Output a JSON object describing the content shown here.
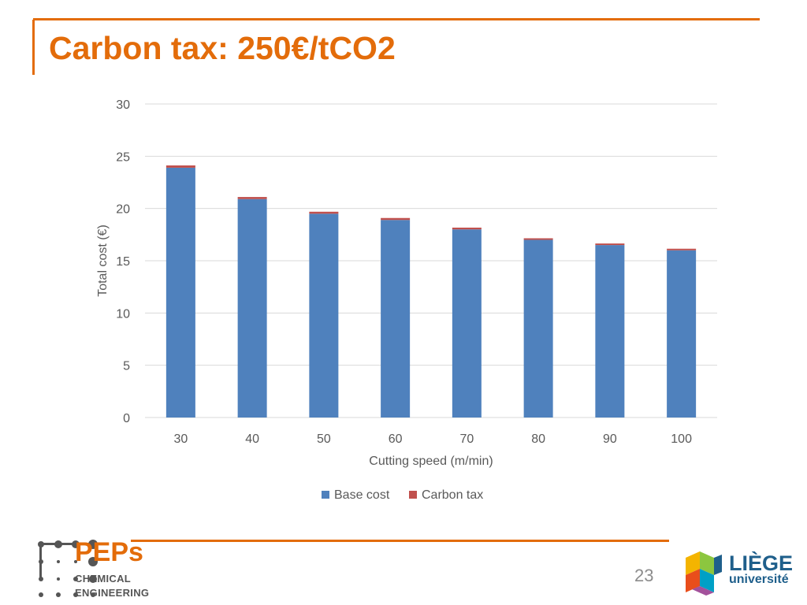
{
  "slide": {
    "title": "Carbon tax: 250€/tCO2",
    "page_number": "23"
  },
  "colors": {
    "accent": "#e36c0a",
    "base_cost": "#4f81bd",
    "carbon_tax": "#c0504d",
    "grid": "#d9d9d9",
    "axis_text": "#595959"
  },
  "footer": {
    "peps_name": "PEPs",
    "peps_line1": "CHEMICAL",
    "peps_line2": "ENGINEERING",
    "uni_name": "LIÈGE",
    "uni_sub": "université"
  },
  "chart_data": {
    "type": "bar",
    "stacked": true,
    "categories": [
      "30",
      "40",
      "50",
      "60",
      "70",
      "80",
      "90",
      "100"
    ],
    "series": [
      {
        "name": "Base cost",
        "values": [
          23.9,
          20.9,
          19.5,
          18.9,
          18.0,
          17.0,
          16.5,
          16.0
        ]
      },
      {
        "name": "Carbon tax",
        "values": [
          0.22,
          0.2,
          0.19,
          0.19,
          0.17,
          0.15,
          0.15,
          0.15
        ]
      }
    ],
    "xlabel": "Cutting speed (m/min)",
    "ylabel": "Total cost (€)",
    "ylim": [
      0,
      30
    ],
    "yticks": [
      0,
      5,
      10,
      15,
      20,
      25,
      30
    ],
    "grid": true,
    "legend_position": "bottom"
  }
}
